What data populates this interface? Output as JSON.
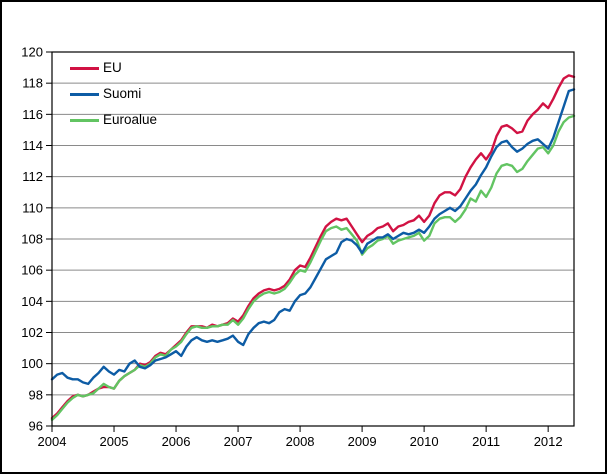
{
  "chart_data": {
    "type": "line",
    "title": "",
    "x_start": "2004-01",
    "x_frequency": "monthly",
    "x_tick_labels": [
      "2004",
      "2005",
      "2006",
      "2007",
      "2008",
      "2009",
      "2010",
      "2011",
      "2012"
    ],
    "y_ticks": [
      96,
      98,
      100,
      102,
      104,
      106,
      108,
      110,
      112,
      114,
      116,
      118,
      120
    ],
    "ylim": [
      96,
      120
    ],
    "grid": "horizontal",
    "grid_color": "#8a8a8a",
    "frame_color": "#000000",
    "background_color": "#ffffff",
    "legend_position": "top-left-inside",
    "series": [
      {
        "name": "EU",
        "color": "#d11243",
        "values": [
          96.5,
          96.8,
          97.2,
          97.6,
          97.9,
          98.0,
          97.9,
          98.0,
          98.2,
          98.4,
          98.5,
          98.5,
          98.4,
          98.9,
          99.2,
          99.4,
          99.6,
          100.0,
          99.9,
          100.1,
          100.5,
          100.7,
          100.6,
          100.9,
          101.2,
          101.5,
          102.0,
          102.4,
          102.4,
          102.4,
          102.3,
          102.5,
          102.4,
          102.5,
          102.6,
          102.9,
          102.7,
          103.1,
          103.7,
          104.2,
          104.5,
          104.7,
          104.8,
          104.7,
          104.8,
          105.0,
          105.4,
          106.0,
          106.3,
          106.2,
          106.8,
          107.5,
          108.2,
          108.8,
          109.1,
          109.3,
          109.2,
          109.3,
          108.8,
          108.3,
          107.8,
          108.2,
          108.4,
          108.7,
          108.8,
          109.0,
          108.5,
          108.8,
          108.9,
          109.1,
          109.2,
          109.5,
          109.1,
          109.5,
          110.3,
          110.8,
          111.0,
          111.0,
          110.8,
          111.2,
          112.0,
          112.6,
          113.1,
          113.5,
          113.1,
          113.6,
          114.6,
          115.2,
          115.3,
          115.1,
          114.8,
          114.9,
          115.6,
          116.0,
          116.3,
          116.7,
          116.4,
          117.0,
          117.7,
          118.3,
          118.5,
          118.4
        ]
      },
      {
        "name": "Suomi",
        "color": "#0d5ca5",
        "values": [
          99.0,
          99.3,
          99.4,
          99.1,
          99.0,
          99.0,
          98.8,
          98.7,
          99.1,
          99.4,
          99.8,
          99.5,
          99.3,
          99.6,
          99.5,
          100.0,
          100.2,
          99.8,
          99.7,
          99.9,
          100.2,
          100.3,
          100.4,
          100.6,
          100.8,
          100.5,
          101.1,
          101.5,
          101.7,
          101.5,
          101.4,
          101.5,
          101.4,
          101.5,
          101.6,
          101.8,
          101.4,
          101.2,
          101.9,
          102.3,
          102.6,
          102.7,
          102.6,
          102.8,
          103.3,
          103.5,
          103.4,
          104.0,
          104.4,
          104.5,
          104.9,
          105.5,
          106.1,
          106.7,
          106.9,
          107.1,
          107.8,
          108.0,
          107.9,
          107.6,
          107.1,
          107.7,
          107.9,
          108.1,
          108.1,
          108.3,
          108.0,
          108.2,
          108.4,
          108.3,
          108.4,
          108.6,
          108.4,
          108.8,
          109.3,
          109.6,
          109.8,
          110.0,
          109.8,
          110.1,
          110.6,
          111.1,
          111.5,
          112.1,
          112.6,
          113.3,
          113.9,
          114.2,
          114.3,
          113.9,
          113.6,
          113.8,
          114.1,
          114.3,
          114.4,
          114.1,
          113.8,
          114.5,
          115.5,
          116.5,
          117.5,
          117.6
        ]
      },
      {
        "name": "Euroalue",
        "color": "#62c462",
        "values": [
          96.4,
          96.7,
          97.1,
          97.5,
          97.8,
          98.0,
          97.9,
          98.0,
          98.1,
          98.4,
          98.7,
          98.5,
          98.4,
          98.9,
          99.2,
          99.4,
          99.6,
          99.9,
          99.8,
          100.0,
          100.4,
          100.6,
          100.5,
          100.9,
          101.1,
          101.4,
          101.9,
          102.3,
          102.4,
          102.3,
          102.3,
          102.4,
          102.4,
          102.5,
          102.5,
          102.8,
          102.5,
          102.9,
          103.5,
          104.0,
          104.3,
          104.5,
          104.6,
          104.5,
          104.6,
          104.8,
          105.2,
          105.7,
          106.0,
          105.9,
          106.5,
          107.2,
          107.9,
          108.5,
          108.7,
          108.8,
          108.6,
          108.7,
          108.3,
          107.9,
          107.0,
          107.4,
          107.6,
          107.9,
          108.0,
          108.2,
          107.7,
          107.9,
          108.0,
          108.1,
          108.2,
          108.4,
          107.9,
          108.2,
          109.0,
          109.3,
          109.4,
          109.4,
          109.1,
          109.4,
          109.9,
          110.6,
          110.4,
          111.1,
          110.7,
          111.3,
          112.2,
          112.7,
          112.8,
          112.7,
          112.3,
          112.5,
          113.0,
          113.4,
          113.8,
          113.9,
          113.5,
          114.0,
          114.9,
          115.5,
          115.8,
          115.9
        ]
      }
    ],
    "draw_order": [
      0,
      2,
      1
    ]
  },
  "legend": {
    "entries": [
      {
        "label": "EU"
      },
      {
        "label": "Suomi"
      },
      {
        "label": "Euroalue"
      }
    ]
  }
}
